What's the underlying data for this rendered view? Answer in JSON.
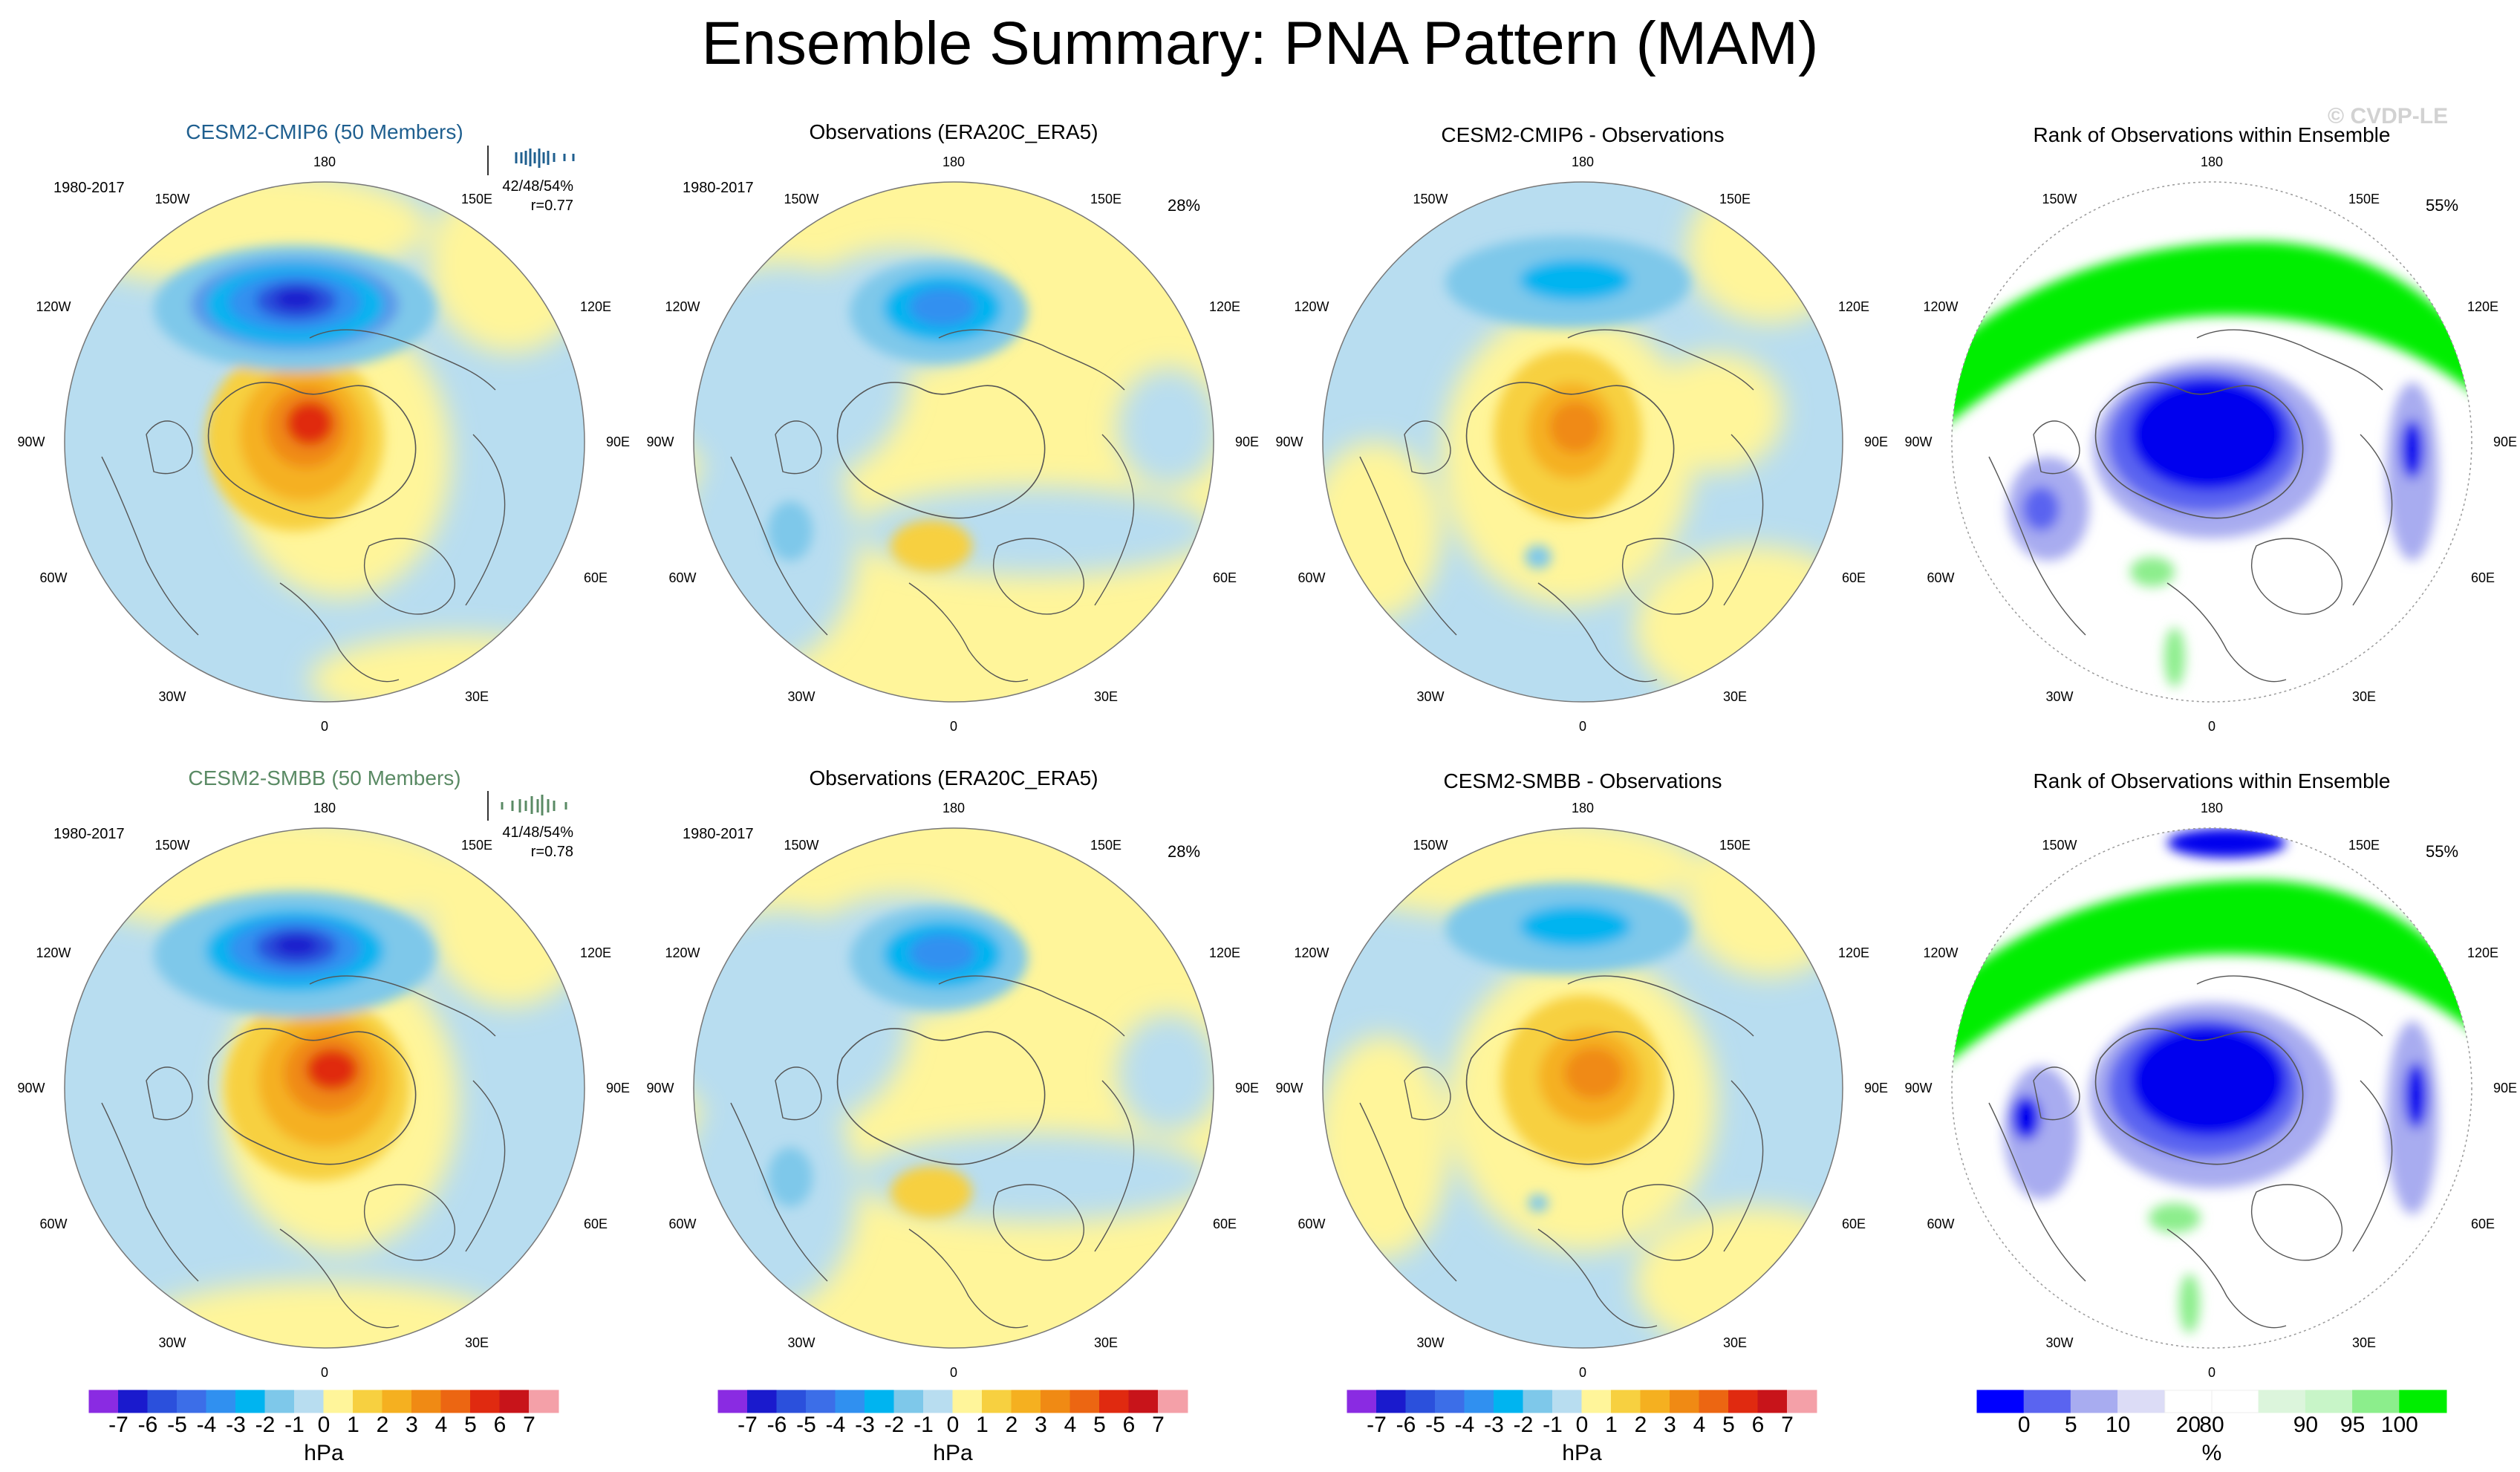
{
  "title": "Ensemble Summary: PNA Pattern (MAM)",
  "watermark": "© CVDP-LE",
  "years": "1980-2017",
  "lon_labels": {
    "l180": "180",
    "l150w": "150W",
    "l150e": "150E",
    "l120w": "120W",
    "l120e": "120E",
    "l90w": "90W",
    "l90e": "90E",
    "l60w": "60W",
    "l60e": "60E",
    "l30w": "30W",
    "l30e": "30E",
    "l0": "0"
  },
  "rows": [
    {
      "ens": {
        "title": "CESM2-CMIP6 (50 Members)",
        "stats1": "42/48/54%",
        "stats2": "r=0.77"
      },
      "obs": {
        "title": "Observations (ERA20C_ERA5)",
        "pct": "28%"
      },
      "diff": {
        "title": "CESM2-CMIP6 - Observations"
      },
      "rank": {
        "title": "Rank of Observations within Ensemble",
        "pct": "55%"
      }
    },
    {
      "ens": {
        "title": "CESM2-SMBB (50 Members)",
        "stats1": "41/48/54%",
        "stats2": "r=0.78"
      },
      "obs": {
        "title": "Observations (ERA20C_ERA5)",
        "pct": "28%"
      },
      "diff": {
        "title": "CESM2-SMBB - Observations"
      },
      "rank": {
        "title": "Rank of Observations within Ensemble",
        "pct": "55%"
      }
    }
  ],
  "colorbar_hpa": {
    "unit": "hPa",
    "labels": [
      "-7",
      "-6",
      "-5",
      "-4",
      "-3",
      "-2",
      "-1",
      "0",
      "1",
      "2",
      "3",
      "4",
      "5",
      "6",
      "7"
    ],
    "colors": [
      "#8a2be2",
      "#1a1acd",
      "#2b50dc",
      "#3c6ee8",
      "#3090f0",
      "#00b4f0",
      "#7ec8ea",
      "#b8ddf0",
      "#fff59a",
      "#f7d040",
      "#f5b020",
      "#f08a14",
      "#ec6612",
      "#e02a10",
      "#c8141a",
      "#f4a0a8"
    ]
  },
  "colorbar_rank": {
    "unit": "%",
    "labels": [
      "0",
      "5",
      "10",
      "20",
      "80",
      "90",
      "95",
      "100"
    ],
    "colors": [
      "#0000ff",
      "#5a64f0",
      "#a8acf0",
      "#dcdcf6",
      "#ffffff",
      "#ffffff",
      "#dcf5dc",
      "#c8f5c8",
      "#8cee8c",
      "#00ee00"
    ]
  },
  "colors": {
    "pos1": "#fff59a",
    "neg1": "#b8ddf0",
    "rank_green": "#00ee00",
    "rank_blue": "#0000ee"
  }
}
